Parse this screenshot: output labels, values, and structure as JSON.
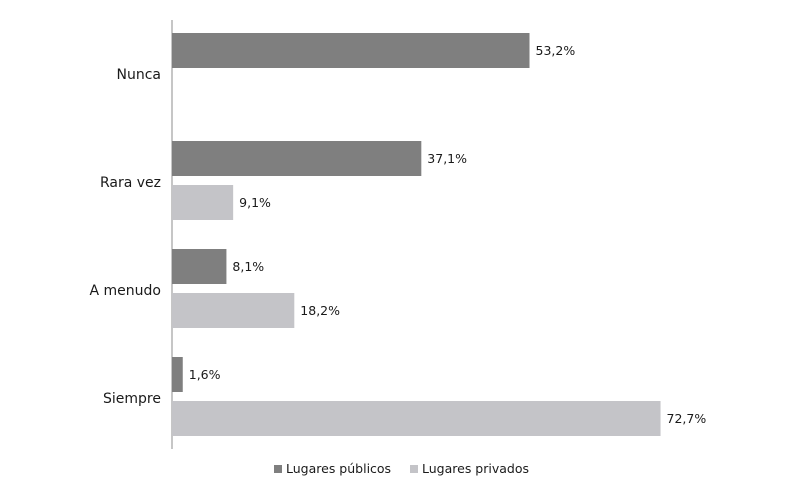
{
  "chart_data": {
    "type": "bar",
    "orientation": "horizontal",
    "categories": [
      "Nunca",
      "Rara vez",
      "A menudo",
      "Siempre"
    ],
    "series": [
      {
        "name": "Lugares públicos",
        "values": [
          53.2,
          37.1,
          8.1,
          1.6
        ],
        "labels": [
          "53,2%",
          "37,1%",
          "8,1%",
          "1,6%"
        ],
        "color": "#7f7f7f"
      },
      {
        "name": "Lugares privados",
        "values": [
          null,
          9.1,
          18.2,
          72.7
        ],
        "labels": [
          "",
          "9,1%",
          "18,2%",
          "72,7%"
        ],
        "color": "#c4c4c8"
      }
    ],
    "value_unit": "%",
    "title": "",
    "xlabel": "",
    "ylabel": "",
    "grid": false,
    "legend_position": "bottom",
    "axis_color": "#8c8c8c"
  }
}
